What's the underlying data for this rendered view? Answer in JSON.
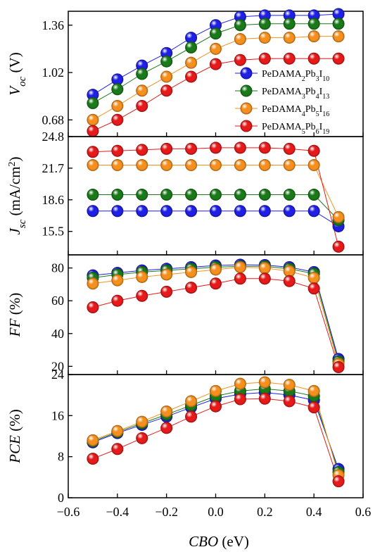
{
  "chart_data": {
    "type": "scatter",
    "x": [
      -0.5,
      -0.4,
      -0.3,
      -0.2,
      -0.1,
      0.0,
      0.1,
      0.2,
      0.3,
      0.4,
      0.5
    ],
    "x_axis": {
      "label_italic": "CBO",
      "label_unit": " (eV)",
      "range": [
        -0.6,
        0.6
      ],
      "ticks": [
        -0.6,
        -0.4,
        -0.2,
        0.0,
        0.2,
        0.4,
        0.6
      ],
      "tick_labels": [
        "−0.6",
        "−0.4",
        "−0.2",
        "0.0",
        "0.2",
        "0.4",
        "0.6"
      ]
    },
    "legend": {
      "placement": "inside top panel, right",
      "entries": [
        {
          "base": "PeDAMA",
          "s1": "2",
          "m1": "Pb",
          "s2": "3",
          "m2": "I",
          "s3": "10"
        },
        {
          "base": "PeDAMA",
          "s1": "3",
          "m1": "Pb",
          "s2": "4",
          "m2": "I",
          "s3": "13"
        },
        {
          "base": "PeDAMA",
          "s1": "4",
          "m1": "Pb",
          "s2": "5",
          "m2": "I",
          "s3": "16"
        },
        {
          "base": "PeDAMA",
          "s1": "5",
          "m1": "Pb",
          "s2": "6",
          "m2": "I",
          "s3": "19"
        }
      ]
    },
    "colors": [
      "#1f1fe6",
      "#1a7a1a",
      "#f5901e",
      "#e61a1a"
    ],
    "panels": [
      {
        "id": "voc",
        "ylabel": {
          "italic": "V",
          "sub": "oc",
          "rest": " (V)"
        },
        "ylim": [
          0.56,
          1.46
        ],
        "yticks": [
          0.68,
          1.02,
          1.36
        ],
        "ytick_labels": [
          "0.68",
          "1.02",
          "1.36"
        ],
        "series": [
          {
            "values": [
              0.86,
              0.97,
              1.07,
              1.16,
              1.27,
              1.36,
              1.42,
              1.43,
              1.43,
              1.43,
              1.44
            ]
          },
          {
            "values": [
              0.8,
              0.9,
              1.01,
              1.1,
              1.2,
              1.3,
              1.36,
              1.37,
              1.37,
              1.37,
              1.37
            ]
          },
          {
            "values": [
              0.68,
              0.78,
              0.89,
              0.99,
              1.09,
              1.19,
              1.26,
              1.27,
              1.27,
              1.28,
              1.28
            ]
          },
          {
            "values": [
              0.6,
              0.68,
              0.78,
              0.89,
              0.99,
              1.08,
              1.11,
              1.12,
              1.12,
              1.12,
              1.12
            ]
          }
        ]
      },
      {
        "id": "jsc",
        "ylabel": {
          "italic": "J",
          "sub": "sc",
          "rest": " (mA/cm",
          "sup": "2",
          "close": ")"
        },
        "ylim": [
          13.2,
          24.8
        ],
        "yticks": [
          15.5,
          18.6,
          21.7,
          24.8
        ],
        "ytick_labels": [
          "15.5",
          "18.6",
          "21.7",
          "24.8"
        ],
        "series": [
          {
            "values": [
              17.5,
              17.5,
              17.5,
              17.5,
              17.5,
              17.5,
              17.5,
              17.5,
              17.5,
              17.5,
              16.0
            ]
          },
          {
            "values": [
              19.1,
              19.1,
              19.1,
              19.1,
              19.1,
              19.1,
              19.1,
              19.1,
              19.1,
              19.1,
              16.6
            ]
          },
          {
            "values": [
              22.0,
              22.0,
              22.0,
              22.0,
              22.0,
              22.0,
              22.0,
              22.0,
              22.0,
              22.0,
              16.9
            ]
          },
          {
            "values": [
              23.3,
              23.4,
              23.5,
              23.6,
              23.6,
              23.7,
              23.7,
              23.7,
              23.6,
              23.4,
              14.0
            ]
          }
        ]
      },
      {
        "id": "ff",
        "ylabel": {
          "italic": "FF",
          "rest": " (%)"
        },
        "ylim": [
          15,
          88
        ],
        "yticks": [
          20,
          40,
          60,
          80
        ],
        "ytick_labels": [
          "20",
          "40",
          "60",
          "80"
        ],
        "series": [
          {
            "values": [
              75.5,
              77.0,
              78.5,
              79.5,
              80.5,
              81.5,
              82.0,
              81.8,
              80.5,
              77.5,
              24.5
            ]
          },
          {
            "values": [
              74.0,
              76.0,
              77.5,
              78.5,
              79.5,
              80.5,
              81.0,
              81.0,
              79.5,
              76.5,
              23.0
            ]
          },
          {
            "values": [
              70.5,
              72.5,
              74.5,
              76.0,
              77.5,
              79.0,
              80.5,
              80.0,
              78.0,
              74.0,
              21.5
            ]
          },
          {
            "values": [
              56.0,
              60.0,
              63.0,
              65.5,
              68.0,
              70.5,
              73.5,
              73.5,
              72.0,
              67.5,
              19.5
            ]
          }
        ]
      },
      {
        "id": "pce",
        "ylabel": {
          "italic": "PCE",
          "rest": " (%)"
        },
        "ylim": [
          0,
          24
        ],
        "yticks": [
          0,
          8,
          16,
          24
        ],
        "ytick_labels": [
          "0",
          "8",
          "16",
          "24"
        ],
        "series": [
          {
            "values": [
              10.8,
              12.6,
              14.2,
              15.8,
              17.6,
              19.3,
              20.2,
              20.5,
              20.0,
              19.0,
              5.6
            ]
          },
          {
            "values": [
              11.0,
              12.8,
              14.5,
              16.2,
              18.0,
              19.8,
              20.8,
              21.2,
              20.8,
              19.8,
              5.0
            ]
          },
          {
            "values": [
              11.2,
              13.0,
              14.8,
              16.8,
              18.8,
              20.8,
              22.2,
              22.5,
              22.0,
              20.8,
              4.4
            ]
          },
          {
            "values": [
              7.6,
              9.5,
              11.6,
              13.6,
              15.8,
              17.8,
              19.2,
              19.3,
              18.8,
              17.6,
              3.2
            ]
          }
        ]
      }
    ]
  }
}
